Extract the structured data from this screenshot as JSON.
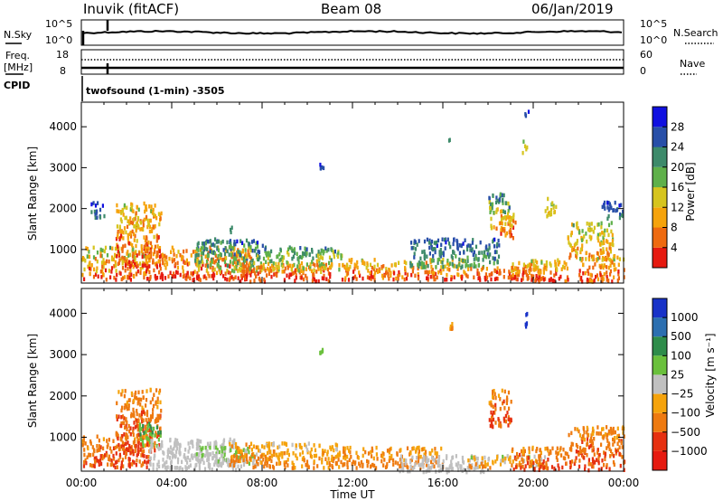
{
  "header": {
    "station": "Inuvik (fitACF)",
    "beam": "Beam 08",
    "date": "06/Jan/2019"
  },
  "top_panels": {
    "nsky_label": "N.Sky",
    "nsearch_label": "N.Search",
    "nsky_ticks": [
      "10^5",
      "10^0"
    ],
    "nsearch_ticks": [
      "10^5",
      "10^0"
    ],
    "freq_label_1": "Freq.",
    "freq_label_2": "[MHz]",
    "freq_ticks": [
      "18",
      "8"
    ],
    "nave_label": "Nave",
    "nave_ticks": [
      "60",
      "0"
    ],
    "cpid_label": "CPID",
    "cpid_text": "twofsound (1-min) -3505"
  },
  "chart_data": [
    {
      "type": "heatmap",
      "name": "power",
      "ylabel": "Slant Range [km]",
      "xlabel": "",
      "y_ticks": [
        1000,
        2000,
        3000,
        4000
      ],
      "ylim": [
        180,
        4600
      ],
      "xlim_hours": [
        0,
        24
      ],
      "colorbar_label": "Power [dB]",
      "colorbar_ticks": [
        "4",
        "8",
        "12",
        "16",
        "20",
        "24",
        "28"
      ],
      "colors": [
        "#1010e0",
        "#284fa8",
        "#3d8a6a",
        "#5fb04a",
        "#d6c41e",
        "#f5a30c",
        "#ee6a10",
        "#e61a10"
      ],
      "blobs": [
        {
          "t": [
            0.0,
            3.0
          ],
          "r": [
            300,
            1100
          ],
          "level": [
            2,
            7
          ]
        },
        {
          "t": [
            0.4,
            1.0
          ],
          "r": [
            1800,
            2200
          ],
          "level": [
            0,
            2
          ]
        },
        {
          "t": [
            1.5,
            3.5
          ],
          "r": [
            600,
            2200
          ],
          "level": [
            3,
            7
          ]
        },
        {
          "t": [
            2.8,
            7.5
          ],
          "r": [
            300,
            1100
          ],
          "level": [
            4,
            7
          ]
        },
        {
          "t": [
            5.0,
            8.0
          ],
          "r": [
            500,
            1300
          ],
          "level": [
            0,
            4
          ]
        },
        {
          "t": [
            6.5,
            6.7
          ],
          "r": [
            1000,
            1600
          ],
          "level": [
            1,
            3
          ]
        },
        {
          "t": [
            7.0,
            11.0
          ],
          "r": [
            250,
            700
          ],
          "level": [
            5,
            7
          ]
        },
        {
          "t": [
            8.0,
            11.5
          ],
          "r": [
            500,
            1100
          ],
          "level": [
            1,
            5
          ]
        },
        {
          "t": [
            11.5,
            17.0
          ],
          "r": [
            300,
            800
          ],
          "level": [
            3,
            7
          ]
        },
        {
          "t": [
            14.5,
            18.5
          ],
          "r": [
            600,
            1300
          ],
          "level": [
            0,
            3
          ]
        },
        {
          "t": [
            17.0,
            20.5
          ],
          "r": [
            300,
            600
          ],
          "level": [
            5,
            7
          ]
        },
        {
          "t": [
            18.0,
            19.0
          ],
          "r": [
            1500,
            2400
          ],
          "level": [
            0,
            6
          ]
        },
        {
          "t": [
            18.5,
            19.2
          ],
          "r": [
            1300,
            2000
          ],
          "level": [
            3,
            7
          ]
        },
        {
          "t": [
            19.0,
            21.5
          ],
          "r": [
            250,
            800
          ],
          "level": [
            3,
            7
          ]
        },
        {
          "t": [
            20.5,
            21.0
          ],
          "r": [
            1800,
            2300
          ],
          "level": [
            2,
            5
          ]
        },
        {
          "t": [
            21.5,
            23.5
          ],
          "r": [
            800,
            1700
          ],
          "level": [
            2,
            6
          ]
        },
        {
          "t": [
            22.0,
            24.0
          ],
          "r": [
            250,
            900
          ],
          "level": [
            3,
            7
          ]
        },
        {
          "t": [
            23.0,
            24.0
          ],
          "r": [
            1800,
            2200
          ],
          "level": [
            0,
            2
          ]
        },
        {
          "t": [
            16.2,
            16.4
          ],
          "r": [
            3600,
            3800
          ],
          "level": [
            2,
            3
          ]
        },
        {
          "t": [
            19.5,
            19.7
          ],
          "r": [
            3400,
            3700
          ],
          "level": [
            3,
            4
          ]
        },
        {
          "t": [
            19.6,
            19.8
          ],
          "r": [
            4300,
            4500
          ],
          "level": [
            0,
            1
          ]
        },
        {
          "t": [
            10.5,
            10.7
          ],
          "r": [
            3000,
            3200
          ],
          "level": [
            0,
            1
          ]
        }
      ]
    },
    {
      "type": "heatmap",
      "name": "velocity",
      "ylabel": "Slant Range [km]",
      "xlabel": "Time UT",
      "x_ticks": [
        "00:00",
        "04:00",
        "08:00",
        "12:00",
        "16:00",
        "20:00",
        "00:00"
      ],
      "y_ticks": [
        1000,
        2000,
        3000,
        4000
      ],
      "ylim": [
        180,
        4600
      ],
      "xlim_hours": [
        0,
        24
      ],
      "colorbar_label": "Velocity [m s⁻¹]",
      "colorbar_ticks": [
        "1000",
        "500",
        "100",
        "25",
        "−25",
        "−100",
        "−500",
        "−1000"
      ],
      "colors": [
        "#1832c8",
        "#2c6fb0",
        "#2e8c4a",
        "#6ac03c",
        "#c0c0c0",
        "#f5a30c",
        "#ee7a10",
        "#e63010",
        "#e61a10"
      ],
      "blobs": [
        {
          "t": [
            0.0,
            3.0
          ],
          "r": [
            300,
            1100
          ],
          "level": [
            5,
            7
          ]
        },
        {
          "t": [
            1.5,
            3.5
          ],
          "r": [
            600,
            2200
          ],
          "level": [
            5,
            7
          ]
        },
        {
          "t": [
            2.5,
            3.5
          ],
          "r": [
            800,
            1400
          ],
          "level": [
            2,
            3
          ]
        },
        {
          "t": [
            3.0,
            6.8
          ],
          "r": [
            250,
            1000
          ],
          "level": [
            4,
            4
          ]
        },
        {
          "t": [
            5.0,
            8.0
          ],
          "r": [
            300,
            800
          ],
          "level": [
            3,
            4
          ]
        },
        {
          "t": [
            6.5,
            8.5
          ],
          "r": [
            300,
            900
          ],
          "level": [
            5,
            6
          ]
        },
        {
          "t": [
            8.0,
            11.5
          ],
          "r": [
            300,
            900
          ],
          "level": [
            4,
            6
          ]
        },
        {
          "t": [
            11.5,
            16.0
          ],
          "r": [
            300,
            800
          ],
          "level": [
            5,
            6
          ]
        },
        {
          "t": [
            14.0,
            18.0
          ],
          "r": [
            200,
            600
          ],
          "level": [
            4,
            4
          ]
        },
        {
          "t": [
            17.0,
            20.5
          ],
          "r": [
            300,
            600
          ],
          "level": [
            3,
            6
          ]
        },
        {
          "t": [
            18.0,
            19.0
          ],
          "r": [
            1300,
            2200
          ],
          "level": [
            5,
            7
          ]
        },
        {
          "t": [
            19.0,
            21.5
          ],
          "r": [
            250,
            800
          ],
          "level": [
            5,
            7
          ]
        },
        {
          "t": [
            21.5,
            24.0
          ],
          "r": [
            250,
            1300
          ],
          "level": [
            5,
            7
          ]
        },
        {
          "t": [
            19.6,
            19.7
          ],
          "r": [
            3700,
            4100
          ],
          "level": [
            0,
            0
          ]
        },
        {
          "t": [
            16.2,
            16.4
          ],
          "r": [
            3600,
            3800
          ],
          "level": [
            5,
            6
          ]
        },
        {
          "t": [
            10.5,
            10.7
          ],
          "r": [
            3000,
            3200
          ],
          "level": [
            3,
            3
          ]
        }
      ]
    }
  ]
}
